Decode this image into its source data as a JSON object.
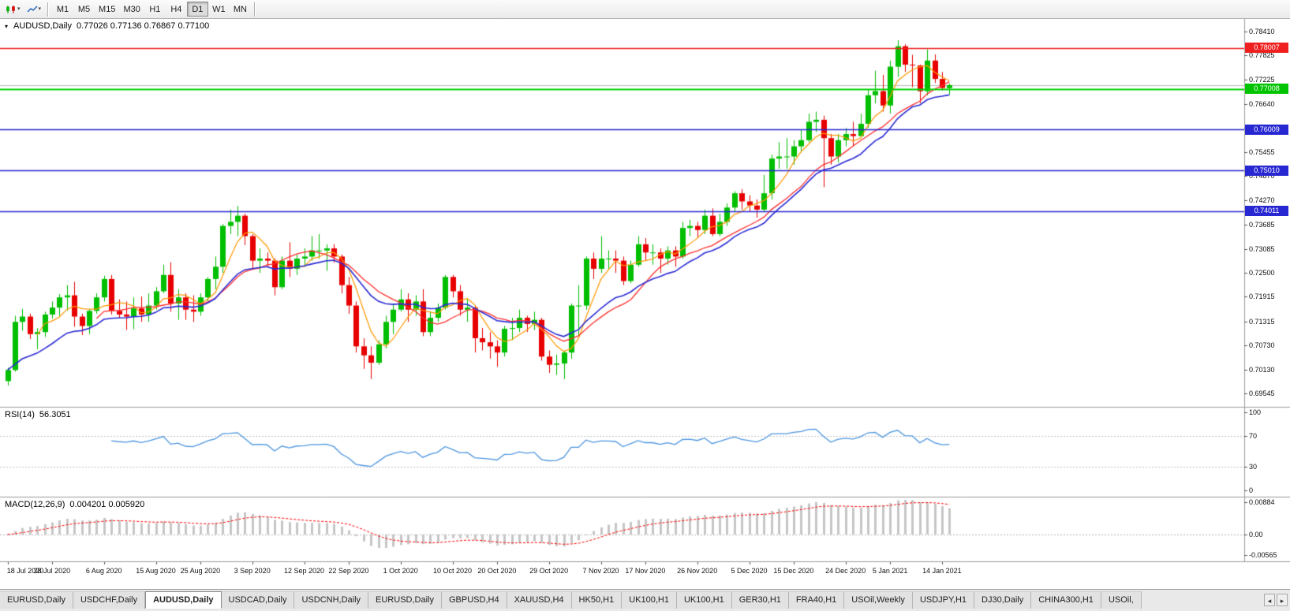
{
  "toolbar": {
    "timeframes": [
      "M1",
      "M5",
      "M15",
      "M30",
      "H1",
      "H4",
      "D1",
      "W1",
      "MN"
    ],
    "active_timeframe": "D1"
  },
  "icons": {
    "caret": "▾",
    "one_click_arrow": "▾",
    "tab_scroll_left": "◂",
    "tab_scroll_right": "▸"
  },
  "chart": {
    "symbol_label": "AUDUSD,Daily",
    "ohlc_label": "0.77026 0.77136 0.76867 0.77100",
    "rsi_label": "RSI(14)",
    "rsi_value": "56.3051",
    "macd_label": "MACD(12,26,9)",
    "macd_values": "0.004201 0.005920"
  },
  "price_axis": {
    "ticks": [
      "0.78410",
      "0.77825",
      "0.77225",
      "0.76640",
      "0.76055",
      "0.75455",
      "0.74870",
      "0.74270",
      "0.73685",
      "0.73085",
      "0.72500",
      "0.71915",
      "0.71315",
      "0.70730",
      "0.70130",
      "0.69545"
    ],
    "badges": [
      {
        "value": "0.78007",
        "color": "#f02020"
      },
      {
        "value": "0.77008",
        "color": "#00c400"
      },
      {
        "value": "0.76009",
        "color": "#2828d2"
      },
      {
        "value": "0.75010",
        "color": "#2828d2"
      },
      {
        "value": "0.74011",
        "color": "#2828d2"
      }
    ],
    "rsi_ticks": [
      "100",
      "70",
      "30",
      "0"
    ],
    "macd_ticks": [
      "0.00884",
      "0.00",
      "-0.00565"
    ]
  },
  "time_axis": {
    "labels": [
      {
        "text": "18 Jul 2020",
        "bar": 0
      },
      {
        "text": "28 Jul 2020",
        "bar": 6
      },
      {
        "text": "6 Aug 2020",
        "bar": 13
      },
      {
        "text": "15 Aug 2020",
        "bar": 20
      },
      {
        "text": "25 Aug 2020",
        "bar": 26
      },
      {
        "text": "3 Sep 2020",
        "bar": 33
      },
      {
        "text": "12 Sep 2020",
        "bar": 40
      },
      {
        "text": "22 Sep 2020",
        "bar": 46
      },
      {
        "text": "1 Oct 2020",
        "bar": 53
      },
      {
        "text": "10 Oct 2020",
        "bar": 60
      },
      {
        "text": "20 Oct 2020",
        "bar": 66
      },
      {
        "text": "29 Oct 2020",
        "bar": 73
      },
      {
        "text": "7 Nov 2020",
        "bar": 80
      },
      {
        "text": "17 Nov 2020",
        "bar": 86
      },
      {
        "text": "26 Nov 2020",
        "bar": 93
      },
      {
        "text": "5 Dec 2020",
        "bar": 100
      },
      {
        "text": "15 Dec 2020",
        "bar": 106
      },
      {
        "text": "24 Dec 2020",
        "bar": 113
      },
      {
        "text": "5 Jan 2021",
        "bar": 119
      },
      {
        "text": "14 Jan 2021",
        "bar": 126
      }
    ]
  },
  "tabs": {
    "active_index": 2,
    "items": [
      "EURUSD,Daily",
      "USDCHF,Daily",
      "AUDUSD,Daily",
      "USDCAD,Daily",
      "USDCNH,Daily",
      "EURUSD,Daily",
      "GBPUSD,H4",
      "XAUUSD,H4",
      "HK50,H1",
      "UK100,H1",
      "UK100,H1",
      "GER30,H1",
      "FRA40,H1",
      "USOil,Weekly",
      "USDJPY,H1",
      "DJ30,Daily",
      "CHINA300,H1",
      "USOil,"
    ]
  },
  "colors": {
    "bull": "#00be00",
    "bear": "#e80000",
    "ma_fast": "#ff9900",
    "ma_mid": "#ff3030",
    "ma_slow": "#2b2bd5",
    "rsi": "#4d96e0",
    "macd_hist": "#c6c6c6",
    "macd_signal": "#ff0000",
    "level_dotted": "#c4c4c4",
    "separator": "#9a9a9a",
    "bid_line": "#bdbdbd"
  },
  "chart_data": {
    "type": "candlestick",
    "symbol": "AUDUSD",
    "timeframe": "Daily",
    "title": "AUDUSD,Daily 0.77026 0.77136 0.76867 0.77100",
    "ohlc_current": {
      "open": 0.77026,
      "high": 0.77136,
      "low": 0.76867,
      "close": 0.771
    },
    "price_range": {
      "min": 0.6922,
      "max": 0.7872
    },
    "horizontal_lines": [
      {
        "price": 0.78007,
        "color": "#f02020",
        "width": 1.4,
        "role": "resistance"
      },
      {
        "price": 0.77008,
        "color": "#00d200",
        "width": 2,
        "role": "support"
      },
      {
        "price": 0.76009,
        "color": "#2828d2",
        "width": 1.6,
        "role": "support"
      },
      {
        "price": 0.7501,
        "color": "#2828d2",
        "width": 1.6,
        "role": "support"
      },
      {
        "price": 0.74011,
        "color": "#2828d2",
        "width": 1.6,
        "role": "support"
      },
      {
        "price": 0.771,
        "color": "#bdbdbd",
        "width": 1,
        "role": "bid"
      }
    ],
    "ma_lines": [
      {
        "name": "fast",
        "method": "sma",
        "period": 5,
        "color": "#ff9900"
      },
      {
        "name": "mid",
        "method": "sma",
        "period": 13,
        "color": "#ff3030"
      },
      {
        "name": "slow",
        "method": "ema",
        "period": 16,
        "color": "#2b2bd5"
      }
    ],
    "rsi": {
      "period": 14,
      "current": 56.3051,
      "levels": [
        70,
        30
      ],
      "scale": [
        0,
        100
      ]
    },
    "macd": {
      "fast": 12,
      "slow": 26,
      "signal_period": 9,
      "current_main": 0.004201,
      "current_signal": 0.00592,
      "range": [
        -0.00565,
        0.00884
      ]
    },
    "candles": [
      [
        "2020.07.20",
        0.6985,
        0.7018,
        0.6974,
        0.7012
      ],
      [
        "2020.07.21",
        0.7012,
        0.7145,
        0.7008,
        0.713
      ],
      [
        "2020.07.22",
        0.713,
        0.7162,
        0.7108,
        0.7143
      ],
      [
        "2020.07.23",
        0.7143,
        0.715,
        0.7088,
        0.71
      ],
      [
        "2020.07.24",
        0.71,
        0.7115,
        0.7063,
        0.7105
      ],
      [
        "2020.07.27",
        0.7105,
        0.7155,
        0.7093,
        0.7148
      ],
      [
        "2020.07.28",
        0.7148,
        0.718,
        0.7138,
        0.7165
      ],
      [
        "2020.07.29",
        0.7165,
        0.7198,
        0.7145,
        0.719
      ],
      [
        "2020.07.30",
        0.719,
        0.722,
        0.7158,
        0.7195
      ],
      [
        "2020.07.31",
        0.7195,
        0.7228,
        0.7118,
        0.7143
      ],
      [
        "2020.08.03",
        0.7143,
        0.715,
        0.7098,
        0.712
      ],
      [
        "2020.08.04",
        0.712,
        0.7162,
        0.71,
        0.7157
      ],
      [
        "2020.08.05",
        0.7157,
        0.72,
        0.715,
        0.719
      ],
      [
        "2020.08.06",
        0.719,
        0.7243,
        0.718,
        0.7235
      ],
      [
        "2020.08.07",
        0.7235,
        0.7245,
        0.7148,
        0.7157
      ],
      [
        "2020.08.10",
        0.7157,
        0.7185,
        0.714,
        0.7148
      ],
      [
        "2020.08.11",
        0.7148,
        0.718,
        0.711,
        0.7143
      ],
      [
        "2020.08.12",
        0.7143,
        0.719,
        0.7112,
        0.7163
      ],
      [
        "2020.08.13",
        0.7163,
        0.7192,
        0.713,
        0.7148
      ],
      [
        "2020.08.14",
        0.7148,
        0.72,
        0.713,
        0.717
      ],
      [
        "2020.08.17",
        0.717,
        0.7215,
        0.716,
        0.7205
      ],
      [
        "2020.08.18",
        0.7205,
        0.727,
        0.72,
        0.7245
      ],
      [
        "2020.08.19",
        0.7245,
        0.7276,
        0.7155,
        0.7175
      ],
      [
        "2020.08.20",
        0.7175,
        0.721,
        0.7135,
        0.719
      ],
      [
        "2020.08.21",
        0.719,
        0.72,
        0.7135,
        0.716
      ],
      [
        "2020.08.24",
        0.716,
        0.7195,
        0.713,
        0.7155
      ],
      [
        "2020.08.25",
        0.7155,
        0.72,
        0.7145,
        0.719
      ],
      [
        "2020.08.26",
        0.719,
        0.724,
        0.718,
        0.7235
      ],
      [
        "2020.08.27",
        0.7235,
        0.729,
        0.721,
        0.7265
      ],
      [
        "2020.08.28",
        0.7265,
        0.737,
        0.725,
        0.7365
      ],
      [
        "2020.08.31",
        0.7365,
        0.7405,
        0.7345,
        0.7375
      ],
      [
        "2020.09.01",
        0.7375,
        0.7414,
        0.734,
        0.739
      ],
      [
        "2020.09.02",
        0.739,
        0.7395,
        0.7318,
        0.734
      ],
      [
        "2020.09.03",
        0.734,
        0.7345,
        0.726,
        0.728
      ],
      [
        "2020.09.04",
        0.728,
        0.731,
        0.725,
        0.7285
      ],
      [
        "2020.09.07",
        0.7285,
        0.73,
        0.7265,
        0.728
      ],
      [
        "2020.09.08",
        0.728,
        0.7285,
        0.7195,
        0.7215
      ],
      [
        "2020.09.09",
        0.7215,
        0.729,
        0.721,
        0.728
      ],
      [
        "2020.09.10",
        0.728,
        0.7325,
        0.724,
        0.726
      ],
      [
        "2020.09.11",
        0.726,
        0.7295,
        0.7245,
        0.7285
      ],
      [
        "2020.09.14",
        0.7285,
        0.731,
        0.7265,
        0.729
      ],
      [
        "2020.09.15",
        0.729,
        0.734,
        0.728,
        0.7305
      ],
      [
        "2020.09.16",
        0.7305,
        0.7345,
        0.7285,
        0.7305
      ],
      [
        "2020.09.17",
        0.7305,
        0.732,
        0.7255,
        0.731
      ],
      [
        "2020.09.18",
        0.731,
        0.732,
        0.7275,
        0.729
      ],
      [
        "2020.09.21",
        0.729,
        0.7295,
        0.72,
        0.722
      ],
      [
        "2020.09.22",
        0.722,
        0.724,
        0.715,
        0.717
      ],
      [
        "2020.09.23",
        0.717,
        0.718,
        0.7055,
        0.707
      ],
      [
        "2020.09.24",
        0.707,
        0.709,
        0.7015,
        0.7048
      ],
      [
        "2020.09.25",
        0.7048,
        0.707,
        0.699,
        0.703
      ],
      [
        "2020.09.28",
        0.703,
        0.7085,
        0.7025,
        0.7075
      ],
      [
        "2020.09.29",
        0.7075,
        0.7145,
        0.7065,
        0.713
      ],
      [
        "2020.09.30",
        0.713,
        0.7175,
        0.71,
        0.716
      ],
      [
        "2020.10.01",
        0.716,
        0.721,
        0.7155,
        0.7185
      ],
      [
        "2020.10.02",
        0.7185,
        0.72,
        0.713,
        0.716
      ],
      [
        "2020.10.05",
        0.716,
        0.7195,
        0.7145,
        0.718
      ],
      [
        "2020.10.06",
        0.718,
        0.721,
        0.7095,
        0.7105
      ],
      [
        "2020.10.07",
        0.7105,
        0.7155,
        0.7095,
        0.714
      ],
      [
        "2020.10.08",
        0.714,
        0.7175,
        0.713,
        0.7165
      ],
      [
        "2020.10.09",
        0.7165,
        0.7245,
        0.716,
        0.724
      ],
      [
        "2020.10.12",
        0.724,
        0.7245,
        0.719,
        0.7205
      ],
      [
        "2020.10.13",
        0.7205,
        0.722,
        0.7145,
        0.716
      ],
      [
        "2020.10.14",
        0.716,
        0.7185,
        0.713,
        0.7165
      ],
      [
        "2020.10.15",
        0.7165,
        0.717,
        0.7055,
        0.709
      ],
      [
        "2020.10.16",
        0.709,
        0.7115,
        0.706,
        0.708
      ],
      [
        "2020.10.19",
        0.708,
        0.7105,
        0.704,
        0.707
      ],
      [
        "2020.10.20",
        0.707,
        0.7085,
        0.702,
        0.7055
      ],
      [
        "2020.10.21",
        0.7055,
        0.712,
        0.7045,
        0.7113
      ],
      [
        "2020.10.22",
        0.7113,
        0.714,
        0.7085,
        0.7115
      ],
      [
        "2020.10.23",
        0.7115,
        0.716,
        0.7105,
        0.714
      ],
      [
        "2020.10.26",
        0.714,
        0.7145,
        0.7105,
        0.7125
      ],
      [
        "2020.10.27",
        0.7125,
        0.7155,
        0.711,
        0.7135
      ],
      [
        "2020.10.28",
        0.7135,
        0.714,
        0.7035,
        0.7045
      ],
      [
        "2020.10.29",
        0.7045,
        0.706,
        0.7005,
        0.7025
      ],
      [
        "2020.10.30",
        0.7025,
        0.705,
        0.7,
        0.7028
      ],
      [
        "2020.11.02",
        0.7028,
        0.706,
        0.699,
        0.7055
      ],
      [
        "2020.11.03",
        0.7055,
        0.7175,
        0.704,
        0.717
      ],
      [
        "2020.11.04",
        0.717,
        0.722,
        0.7095,
        0.717
      ],
      [
        "2020.11.05",
        0.717,
        0.729,
        0.716,
        0.7285
      ],
      [
        "2020.11.06",
        0.7285,
        0.73,
        0.7235,
        0.726
      ],
      [
        "2020.11.09",
        0.726,
        0.734,
        0.725,
        0.7285
      ],
      [
        "2020.11.10",
        0.7285,
        0.7305,
        0.726,
        0.7285
      ],
      [
        "2020.11.11",
        0.7285,
        0.7305,
        0.725,
        0.728
      ],
      [
        "2020.11.12",
        0.728,
        0.729,
        0.722,
        0.723
      ],
      [
        "2020.11.13",
        0.723,
        0.728,
        0.7225,
        0.727
      ],
      [
        "2020.11.16",
        0.727,
        0.734,
        0.7265,
        0.732
      ],
      [
        "2020.11.17",
        0.732,
        0.7335,
        0.728,
        0.73
      ],
      [
        "2020.11.18",
        0.73,
        0.732,
        0.727,
        0.73
      ],
      [
        "2020.11.19",
        0.73,
        0.731,
        0.725,
        0.7285
      ],
      [
        "2020.11.20",
        0.7285,
        0.7315,
        0.727,
        0.7305
      ],
      [
        "2020.11.23",
        0.7305,
        0.7315,
        0.7265,
        0.729
      ],
      [
        "2020.11.24",
        0.729,
        0.7375,
        0.7285,
        0.736
      ],
      [
        "2020.11.25",
        0.736,
        0.738,
        0.734,
        0.7365
      ],
      [
        "2020.11.26",
        0.7365,
        0.7375,
        0.7335,
        0.7355
      ],
      [
        "2020.11.27",
        0.7355,
        0.7405,
        0.7345,
        0.739
      ],
      [
        "2020.11.30",
        0.739,
        0.7408,
        0.734,
        0.7345
      ],
      [
        "2020.12.01",
        0.7345,
        0.7395,
        0.734,
        0.7375
      ],
      [
        "2020.12.02",
        0.7375,
        0.742,
        0.7365,
        0.741
      ],
      [
        "2020.12.03",
        0.741,
        0.745,
        0.74,
        0.7445
      ],
      [
        "2020.12.04",
        0.7445,
        0.7455,
        0.7405,
        0.7425
      ],
      [
        "2020.12.07",
        0.7425,
        0.744,
        0.74,
        0.7415
      ],
      [
        "2020.12.08",
        0.7415,
        0.743,
        0.7385,
        0.7405
      ],
      [
        "2020.12.09",
        0.7405,
        0.749,
        0.74,
        0.7445
      ],
      [
        "2020.12.10",
        0.7445,
        0.754,
        0.743,
        0.753
      ],
      [
        "2020.12.11",
        0.753,
        0.757,
        0.7505,
        0.7535
      ],
      [
        "2020.12.14",
        0.7535,
        0.758,
        0.7505,
        0.7535
      ],
      [
        "2020.12.15",
        0.7535,
        0.7575,
        0.7515,
        0.756
      ],
      [
        "2020.12.16",
        0.756,
        0.76,
        0.7545,
        0.7575
      ],
      [
        "2020.12.17",
        0.7575,
        0.764,
        0.757,
        0.762
      ],
      [
        "2020.12.18",
        0.762,
        0.7645,
        0.7595,
        0.7625
      ],
      [
        "2020.12.21",
        0.7625,
        0.7635,
        0.746,
        0.758
      ],
      [
        "2020.12.22",
        0.758,
        0.759,
        0.7515,
        0.7535
      ],
      [
        "2020.12.23",
        0.7535,
        0.759,
        0.752,
        0.7575
      ],
      [
        "2020.12.24",
        0.7575,
        0.7605,
        0.756,
        0.759
      ],
      [
        "2020.12.28",
        0.759,
        0.762,
        0.756,
        0.7585
      ],
      [
        "2020.12.29",
        0.7585,
        0.764,
        0.758,
        0.7615
      ],
      [
        "2020.12.30",
        0.7615,
        0.77,
        0.7605,
        0.7685
      ],
      [
        "2020.12.31",
        0.7685,
        0.7745,
        0.7665,
        0.7695
      ],
      [
        "2021.01.04",
        0.7695,
        0.7735,
        0.7645,
        0.766
      ],
      [
        "2021.01.05",
        0.766,
        0.777,
        0.764,
        0.7755
      ],
      [
        "2021.01.06",
        0.7755,
        0.782,
        0.773,
        0.7805
      ],
      [
        "2021.01.07",
        0.7805,
        0.781,
        0.7742,
        0.776
      ],
      [
        "2021.01.08",
        0.776,
        0.7784,
        0.7705,
        0.7758
      ],
      [
        "2021.01.11",
        0.7758,
        0.776,
        0.7666,
        0.7695
      ],
      [
        "2021.01.12",
        0.7695,
        0.7797,
        0.7685,
        0.777
      ],
      [
        "2021.01.13",
        0.777,
        0.7785,
        0.7715,
        0.7725
      ],
      [
        "2021.01.14",
        0.7725,
        0.7742,
        0.7697,
        0.7703
      ],
      [
        "2021.01.15",
        0.77026,
        0.77136,
        0.76867,
        0.771
      ]
    ]
  }
}
